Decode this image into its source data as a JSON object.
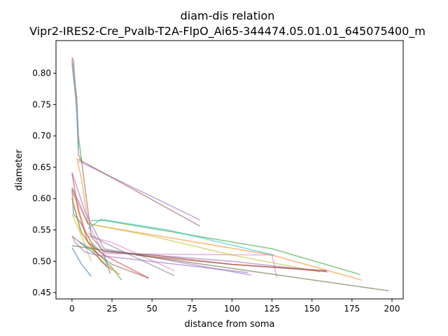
{
  "chart_data": {
    "type": "line",
    "title": "diam-dis relation",
    "subtitle": "Vipr2-IRES2-Cre_Pvalb-T2A-FlpO_Ai65-344474.05.01.01_645075400_m",
    "xlabel": "distance from soma",
    "ylabel": "diameter",
    "xlim": [
      -10,
      207
    ],
    "ylim": [
      0.44,
      0.852
    ],
    "xticks": [
      0,
      25,
      50,
      75,
      100,
      125,
      150,
      175,
      200
    ],
    "yticks": [
      0.45,
      0.5,
      0.55,
      0.6,
      0.65,
      0.7,
      0.75,
      0.8
    ],
    "grid": false,
    "series": [
      {
        "color": "#1f77b4",
        "x": [
          0,
          1,
          5,
          12,
          20,
          24
        ],
        "y": [
          0.615,
          0.575,
          0.563,
          0.53,
          0.51,
          0.48
        ]
      },
      {
        "color": "#1f77b4",
        "x": [
          0,
          6,
          12
        ],
        "y": [
          0.522,
          0.495,
          0.476
        ]
      },
      {
        "color": "#ff7f0e",
        "x": [
          0,
          8,
          18,
          30
        ],
        "y": [
          0.617,
          0.55,
          0.5,
          0.479
        ]
      },
      {
        "color": "#ff7f0e",
        "x": [
          3,
          6,
          10,
          20,
          125,
          181
        ],
        "y": [
          0.665,
          0.63,
          0.56,
          0.555,
          0.51,
          0.47
        ]
      },
      {
        "color": "#2ca02c",
        "x": [
          0,
          6,
          15,
          25,
          31
        ],
        "y": [
          0.6,
          0.545,
          0.515,
          0.49,
          0.47
        ]
      },
      {
        "color": "#2ca02c",
        "x": [
          12,
          20,
          125,
          180
        ],
        "y": [
          0.565,
          0.565,
          0.52,
          0.479
        ]
      },
      {
        "color": "#d62728",
        "x": [
          0,
          4,
          10,
          20,
          48
        ],
        "y": [
          0.64,
          0.58,
          0.53,
          0.51,
          0.473
        ]
      },
      {
        "color": "#9467bd",
        "x": [
          4,
          80
        ],
        "y": [
          0.66,
          0.566
        ]
      },
      {
        "color": "#9467bd",
        "x": [
          0,
          8,
          20,
          112
        ],
        "y": [
          0.642,
          0.58,
          0.52,
          0.478
        ]
      },
      {
        "color": "#8c564b",
        "x": [
          4,
          80
        ],
        "y": [
          0.663,
          0.556
        ]
      },
      {
        "color": "#8c564b",
        "x": [
          0,
          5,
          12,
          25,
          48
        ],
        "y": [
          0.54,
          0.53,
          0.52,
          0.495,
          0.473
        ]
      },
      {
        "color": "#e377c2",
        "x": [
          0,
          10,
          20,
          125,
          128
        ],
        "y": [
          0.61,
          0.56,
          0.512,
          0.51,
          0.474
        ]
      },
      {
        "color": "#e377c2",
        "x": [
          10,
          25,
          64
        ],
        "y": [
          0.54,
          0.53,
          0.485
        ]
      },
      {
        "color": "#7f7f7f",
        "x": [
          10,
          20,
          64
        ],
        "y": [
          0.545,
          0.53,
          0.477
        ]
      },
      {
        "color": "#bcbd22",
        "x": [
          0,
          6,
          12
        ],
        "y": [
          0.575,
          0.54,
          0.5
        ]
      },
      {
        "color": "#bcbd22",
        "x": [
          10,
          20,
          50,
          100,
          155
        ],
        "y": [
          0.56,
          0.555,
          0.54,
          0.51,
          0.483
        ]
      },
      {
        "color": "#17becf",
        "x": [
          10,
          18,
          60,
          126
        ],
        "y": [
          0.552,
          0.567,
          0.55,
          0.51
        ]
      },
      {
        "color": "#1f77b4",
        "x": [
          5,
          10,
          15,
          22
        ],
        "y": [
          0.53,
          0.52,
          0.51,
          0.49
        ]
      },
      {
        "color": "#ff7f0e",
        "x": [
          0,
          5,
          15,
          25
        ],
        "y": [
          0.6,
          0.55,
          0.51,
          0.485
        ]
      },
      {
        "color": "#9467bd",
        "x": [
          20,
          100,
          160
        ],
        "y": [
          0.516,
          0.5,
          0.483
        ]
      },
      {
        "color": "#d62728",
        "x": [
          40,
          100,
          159
        ],
        "y": [
          0.51,
          0.495,
          0.485
        ]
      },
      {
        "color": "#8c564b",
        "x": [
          0,
          1,
          2,
          3,
          4,
          6,
          12,
          20,
          50,
          100,
          159
        ],
        "y": [
          0.825,
          0.82,
          0.78,
          0.76,
          0.67,
          0.66,
          0.54,
          0.515,
          0.51,
          0.495,
          0.484
        ]
      },
      {
        "color": "#2ca02c",
        "x": [
          0,
          1,
          2,
          3,
          4,
          6
        ],
        "y": [
          0.82,
          0.8,
          0.78,
          0.75,
          0.7,
          0.66
        ]
      },
      {
        "color": "#17becf",
        "x": [
          0,
          1,
          2,
          3,
          4
        ],
        "y": [
          0.815,
          0.79,
          0.77,
          0.73,
          0.68
        ]
      },
      {
        "color": "#e377c2",
        "x": [
          0,
          1,
          2,
          3,
          4
        ],
        "y": [
          0.823,
          0.8,
          0.77,
          0.75,
          0.69
        ]
      },
      {
        "color": "#9467bd",
        "x": [
          0,
          2,
          4,
          8,
          15,
          110
        ],
        "y": [
          0.54,
          0.53,
          0.525,
          0.515,
          0.51,
          0.482
        ]
      },
      {
        "color": "#556b2f",
        "x": [
          0,
          198
        ],
        "y": [
          0.525,
          0.453
        ]
      },
      {
        "color": "#8c564b",
        "x": [
          0,
          5,
          10
        ],
        "y": [
          0.617,
          0.59,
          0.56
        ]
      }
    ]
  }
}
